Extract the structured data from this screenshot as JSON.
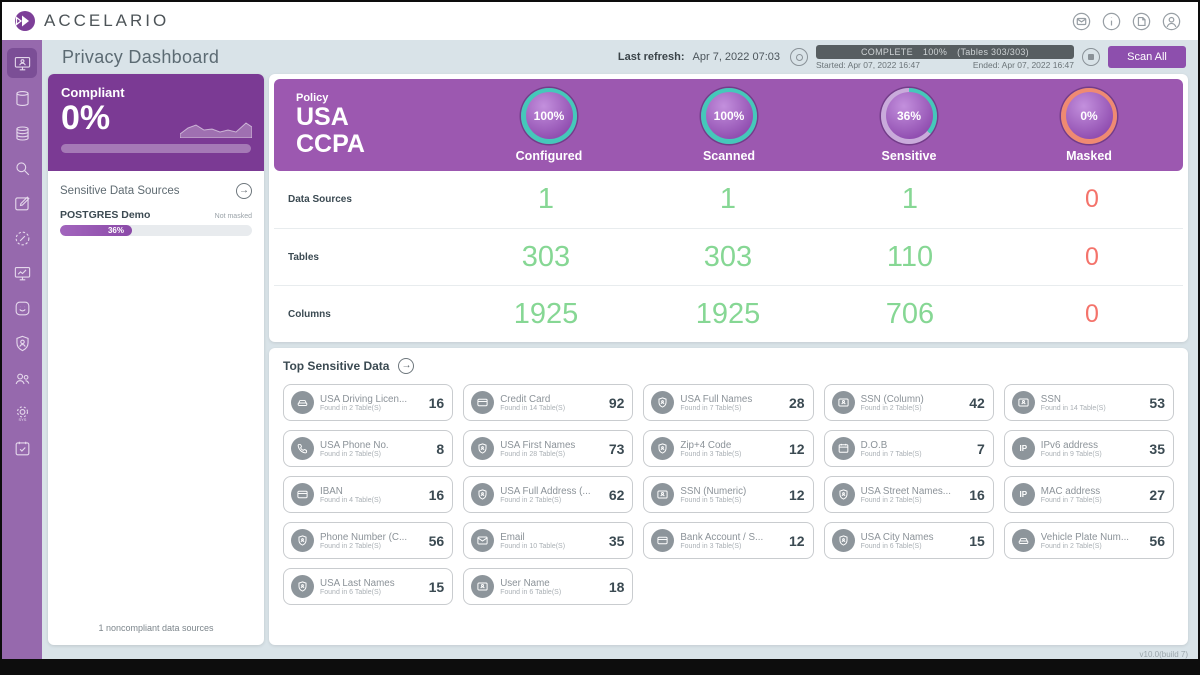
{
  "app": {
    "brand": "ACCELARIO",
    "version": "v10.0(build 7)"
  },
  "topbar": {
    "icons": [
      "mail",
      "info",
      "report",
      "account"
    ]
  },
  "sidebar": {
    "items": [
      {
        "name": "privacy-dashboard",
        "icon": "monitor-user",
        "active": true
      },
      {
        "name": "data-source",
        "icon": "db",
        "active": false
      },
      {
        "name": "environments",
        "icon": "dbs",
        "active": false
      },
      {
        "name": "discovery",
        "icon": "search",
        "active": false
      },
      {
        "name": "rules-editor",
        "icon": "pencil",
        "active": false
      },
      {
        "name": "compliance",
        "icon": "gauge",
        "active": false
      },
      {
        "name": "monitoring",
        "icon": "monitor-chart",
        "active": false
      },
      {
        "name": "masking",
        "icon": "smile-badge",
        "active": false
      },
      {
        "name": "privacy",
        "icon": "user-badge",
        "active": false
      },
      {
        "name": "users",
        "icon": "users",
        "active": false
      },
      {
        "name": "system-settings",
        "icon": "gear-sys",
        "active": false
      },
      {
        "name": "scheduler",
        "icon": "calendar-check",
        "active": false
      }
    ]
  },
  "header": {
    "title": "Privacy Dashboard",
    "last_refresh_label": "Last refresh:",
    "last_refresh_value": "Apr 7, 2022 07:03",
    "scan": {
      "status": "COMPLETE",
      "percent": "100%",
      "tables": "(Tables 303/303)",
      "started": "Started: Apr 07, 2022 16:47",
      "ended": "Ended: Apr 07, 2022 16:47"
    },
    "scan_all_label": "Scan All"
  },
  "compliance": {
    "compliant_label": "Compliant",
    "compliant_percent": "0%",
    "sources_title": "Sensitive Data Sources",
    "sources": [
      {
        "name": "POSTGRES Demo",
        "note": "Not masked",
        "percent": 36,
        "percent_label": "36%"
      }
    ],
    "footer": "1 noncompliant data sources"
  },
  "policy": {
    "label": "Policy",
    "line1": "USA",
    "line2": "CCPA",
    "gauges": [
      {
        "value": "100%",
        "label": "Configured",
        "ring_color": "#45c8ba",
        "pct": 100
      },
      {
        "value": "100%",
        "label": "Scanned",
        "ring_color": "#45c8ba",
        "pct": 100
      },
      {
        "value": "36%",
        "label": "Sensitive",
        "ring_color": "#45c8ba",
        "pct": 36
      },
      {
        "value": "0%",
        "label": "Masked",
        "ring_color": "#ef8a72",
        "pct": 100
      }
    ],
    "ring_rest_color": "#c9abdb"
  },
  "stats": {
    "positive_color": "#86d794",
    "negative_color": "#f4736b",
    "rows": [
      {
        "label": "Data Sources",
        "values": [
          "1",
          "1",
          "1",
          "0"
        ]
      },
      {
        "label": "Tables",
        "values": [
          "303",
          "303",
          "110",
          "0"
        ]
      },
      {
        "label": "Columns",
        "values": [
          "1925",
          "1925",
          "706",
          "0"
        ]
      }
    ]
  },
  "top_sensitive": {
    "title": "Top Sensitive Data",
    "cards": [
      {
        "icon": "car",
        "title": "USA Driving Licen...",
        "subtitle": "Found in 2 Table(S)",
        "count": "16"
      },
      {
        "icon": "credit-card",
        "title": "Credit Card",
        "subtitle": "Found in 14 Table(S)",
        "count": "92"
      },
      {
        "icon": "shield",
        "title": "USA Full Names",
        "subtitle": "Found in 7 Table(S)",
        "count": "28"
      },
      {
        "icon": "id-card",
        "title": "SSN (Column)",
        "subtitle": "Found in 2 Table(S)",
        "count": "42"
      },
      {
        "icon": "id-card",
        "title": "SSN",
        "subtitle": "Found in 14 Table(S)",
        "count": "53"
      },
      {
        "icon": "phone",
        "title": "USA Phone No.",
        "subtitle": "Found in 2 Table(S)",
        "count": "8"
      },
      {
        "icon": "shield",
        "title": "USA First Names",
        "subtitle": "Found in 28 Table(S)",
        "count": "73"
      },
      {
        "icon": "shield",
        "title": "Zip+4 Code",
        "subtitle": "Found in 3 Table(S)",
        "count": "12"
      },
      {
        "icon": "calendar",
        "title": "D.O.B",
        "subtitle": "Found in 7 Table(S)",
        "count": "7"
      },
      {
        "icon": "ip",
        "title": "IPv6 address",
        "subtitle": "Found in 9 Table(S)",
        "count": "35"
      },
      {
        "icon": "credit-card",
        "title": "IBAN",
        "subtitle": "Found in 4 Table(S)",
        "count": "16"
      },
      {
        "icon": "shield",
        "title": "USA Full Address (...",
        "subtitle": "Found in 2 Table(S)",
        "count": "62"
      },
      {
        "icon": "id-card",
        "title": "SSN (Numeric)",
        "subtitle": "Found in 5 Table(S)",
        "count": "12"
      },
      {
        "icon": "shield",
        "title": "USA Street Names...",
        "subtitle": "Found in 2 Table(S)",
        "count": "16"
      },
      {
        "icon": "ip",
        "title": "MAC address",
        "subtitle": "Found in 7 Table(S)",
        "count": "27"
      },
      {
        "icon": "shield",
        "title": "Phone Number (C...",
        "subtitle": "Found in 2 Table(S)",
        "count": "56"
      },
      {
        "icon": "envelope",
        "title": "Email",
        "subtitle": "Found in 10 Table(S)",
        "count": "35"
      },
      {
        "icon": "credit-card",
        "title": "Bank Account / S...",
        "subtitle": "Found in 3 Table(S)",
        "count": "12"
      },
      {
        "icon": "shield",
        "title": "USA City Names",
        "subtitle": "Found in 6 Table(S)",
        "count": "15"
      },
      {
        "icon": "car",
        "title": "Vehicle Plate Num...",
        "subtitle": "Found in 2 Table(S)",
        "count": "56"
      },
      {
        "icon": "shield",
        "title": "USA Last Names",
        "subtitle": "Found in 6 Table(S)",
        "count": "15"
      },
      {
        "icon": "id-card",
        "title": "User Name",
        "subtitle": "Found in 6 Table(S)",
        "count": "18"
      }
    ]
  }
}
